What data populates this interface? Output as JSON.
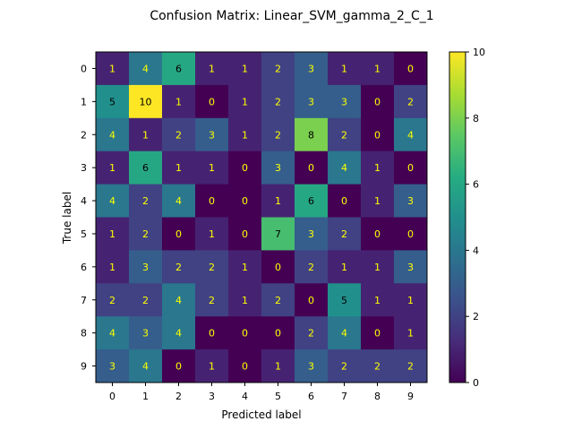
{
  "chart_data": {
    "type": "heatmap",
    "title": "Confusion Matrix: Linear_SVM_gamma_2_C_1",
    "xlabel": "Predicted label",
    "ylabel": "True label",
    "x_categories": [
      "0",
      "1",
      "2",
      "3",
      "4",
      "5",
      "6",
      "7",
      "8",
      "9"
    ],
    "y_categories": [
      "0",
      "1",
      "2",
      "3",
      "4",
      "5",
      "6",
      "7",
      "8",
      "9"
    ],
    "values": [
      [
        1,
        4,
        6,
        1,
        1,
        2,
        3,
        1,
        1,
        0
      ],
      [
        5,
        10,
        1,
        0,
        1,
        2,
        3,
        3,
        0,
        2
      ],
      [
        4,
        1,
        2,
        3,
        1,
        2,
        8,
        2,
        0,
        4
      ],
      [
        1,
        6,
        1,
        1,
        0,
        3,
        0,
        4,
        1,
        0
      ],
      [
        4,
        2,
        4,
        0,
        0,
        1,
        6,
        0,
        1,
        3
      ],
      [
        1,
        2,
        0,
        1,
        0,
        7,
        3,
        2,
        0,
        0
      ],
      [
        1,
        3,
        2,
        2,
        1,
        0,
        2,
        1,
        1,
        3
      ],
      [
        2,
        2,
        4,
        2,
        1,
        2,
        0,
        5,
        1,
        1
      ],
      [
        4,
        3,
        4,
        0,
        0,
        0,
        2,
        4,
        0,
        1
      ],
      [
        3,
        4,
        0,
        1,
        0,
        1,
        3,
        2,
        2,
        2
      ]
    ],
    "colormap": "viridis",
    "vmin": 0,
    "vmax": 10,
    "colorbar_ticks": [
      0,
      2,
      4,
      6,
      8,
      10
    ],
    "text_color_light": "#ffff00",
    "text_color_dark": "#000000"
  }
}
